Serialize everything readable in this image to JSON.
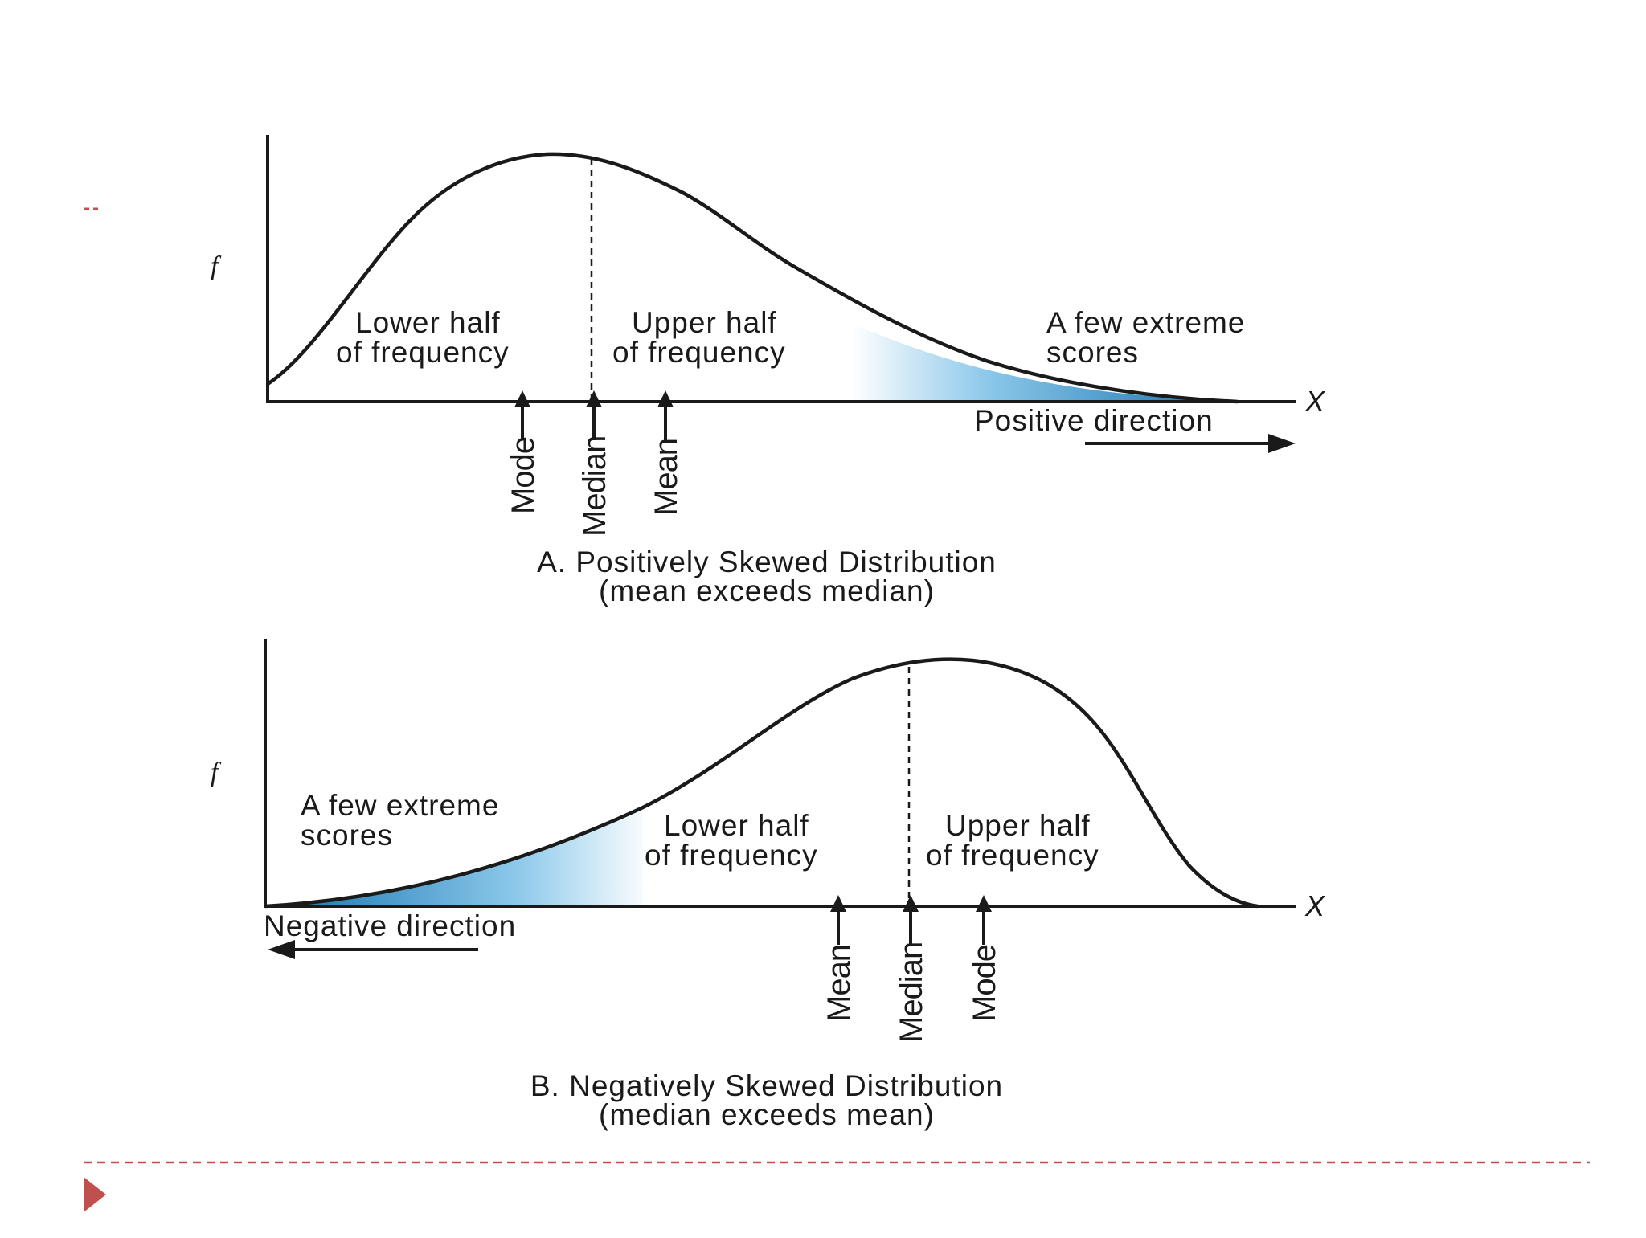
{
  "colors": {
    "ink": "#1a1a1a",
    "shade": "#1c7fbd",
    "footer_line": "#c0504d",
    "footer_arrow": "#c0504d"
  },
  "panel_a": {
    "y_label": "f",
    "x_label": "X",
    "region_lower": [
      "Lower half",
      "of frequency"
    ],
    "region_upper": [
      "Upper half",
      "of frequency"
    ],
    "region_extreme": [
      "A few extreme",
      "scores"
    ],
    "direction": "Positive direction",
    "markers": [
      "Mode",
      "Median",
      "Mean"
    ],
    "title": "A. Positively Skewed Distribution",
    "subtitle": "(mean exceeds median)"
  },
  "panel_b": {
    "y_label": "f",
    "x_label": "X",
    "region_extreme": [
      "A few extreme",
      "scores"
    ],
    "region_lower": [
      "Lower half",
      "of frequency"
    ],
    "region_upper": [
      "Upper half",
      "of frequency"
    ],
    "direction": "Negative direction",
    "markers": [
      "Mean",
      "Median",
      "Mode"
    ],
    "title": "B. Negatively Skewed Distribution",
    "subtitle": "(median exceeds mean)"
  },
  "footer": {
    "arrow_icon": "play-triangle-icon"
  }
}
